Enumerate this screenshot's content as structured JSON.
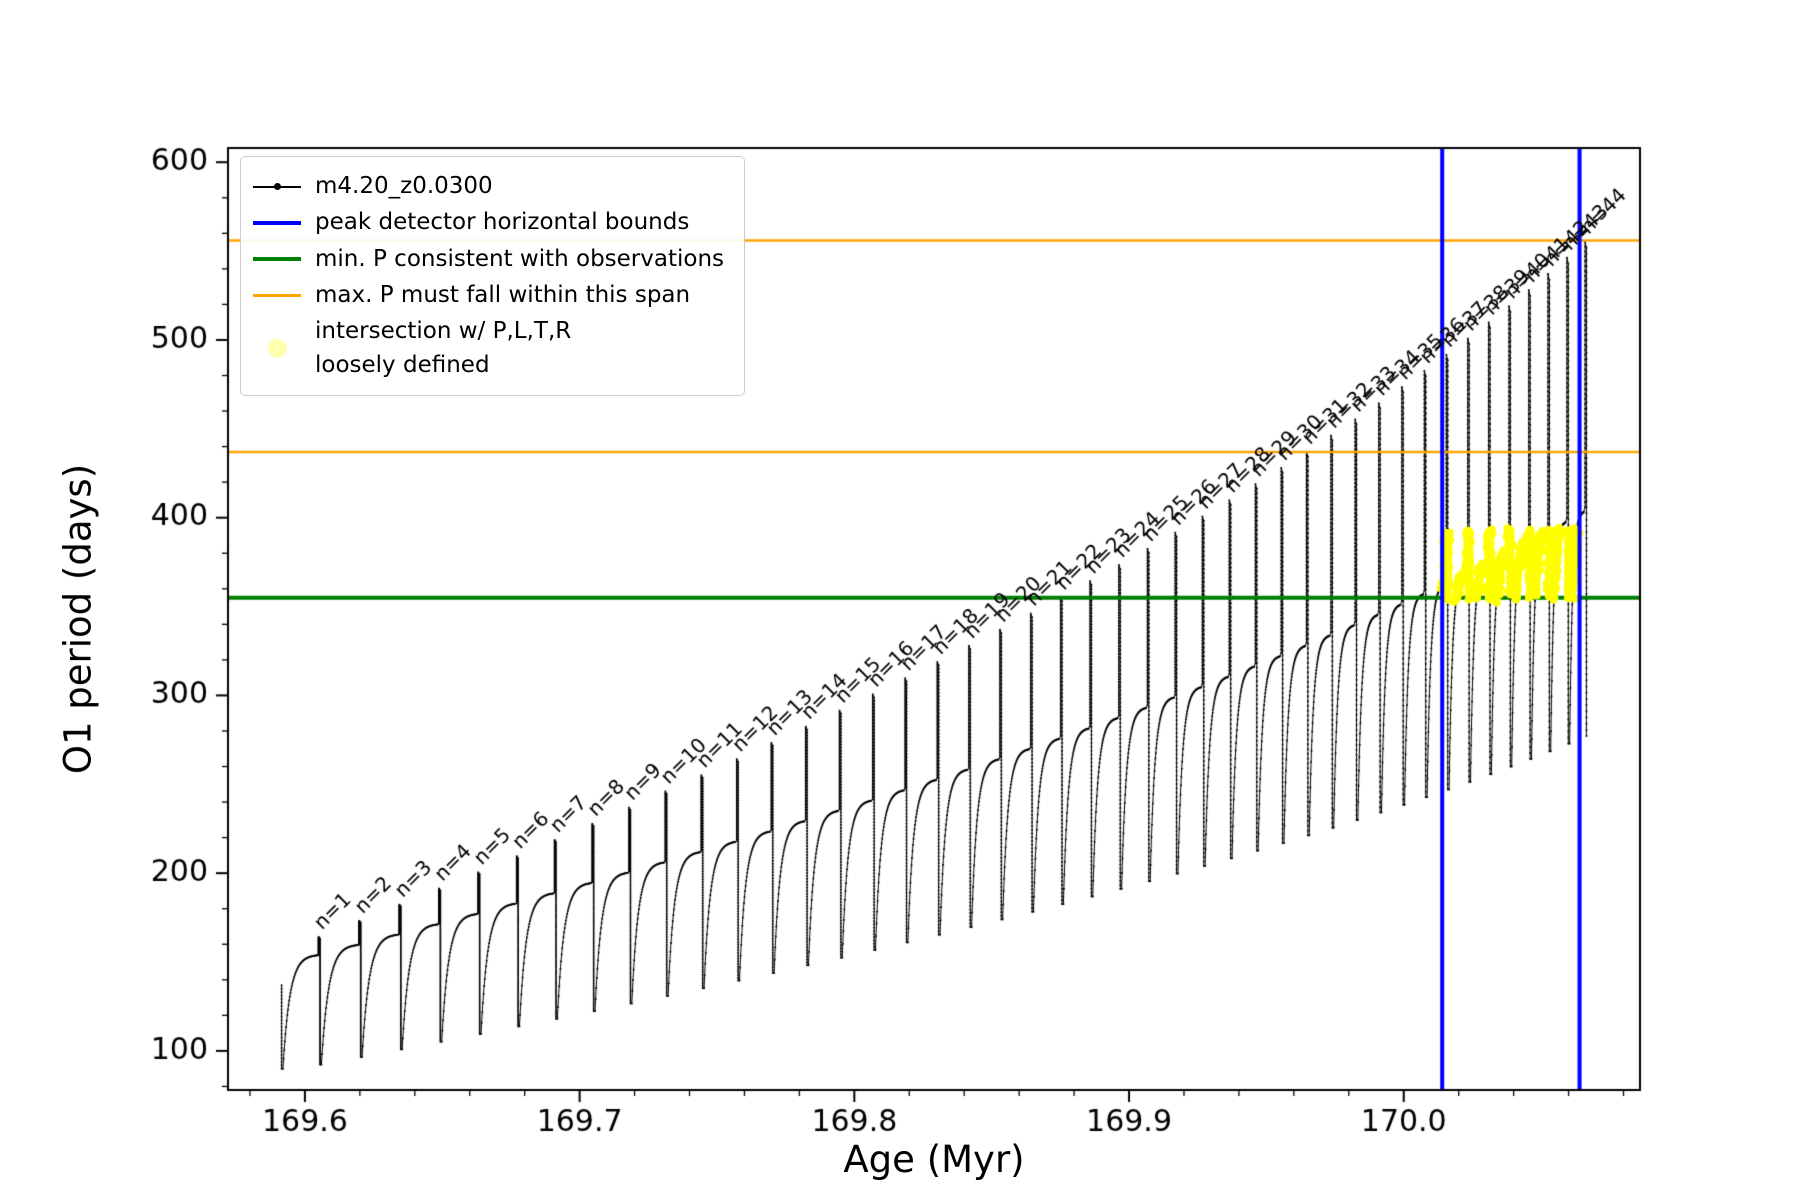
{
  "legend": {
    "entries": [
      {
        "label": "m4.20_z0.0300",
        "type": "line-dot",
        "color": "#000000"
      },
      {
        "label": "peak detector horizontal bounds",
        "type": "line",
        "color": "#0000ff"
      },
      {
        "label": "min. P consistent with observations",
        "type": "line",
        "color": "#008000"
      },
      {
        "label": "max. P must fall within this span",
        "type": "line",
        "color": "#ffa500"
      },
      {
        "label": "intersection w/ P,L,T,R\nloosely defined",
        "type": "dot",
        "color": "#ffffb0"
      }
    ]
  },
  "chart_data": {
    "type": "line",
    "series_name": "m4.20_z0.0300",
    "xlabel": "Age (Myr)",
    "ylabel": "O1 period (days)",
    "xlim": [
      169.572,
      170.086
    ],
    "ylim": [
      78,
      608
    ],
    "x_ticks": [
      169.6,
      169.7,
      169.8,
      169.9,
      170.0
    ],
    "x_tick_labels": [
      "169.6",
      "169.7",
      "169.8",
      "169.9",
      "170.0"
    ],
    "y_ticks": [
      100,
      200,
      300,
      400,
      500,
      600
    ],
    "y_tick_labels": [
      "100",
      "200",
      "300",
      "400",
      "500",
      "600"
    ],
    "x_minor_step": 0.02,
    "y_minor_step": 20,
    "grid": false,
    "legend_position": "upper left",
    "line_color": "#000000",
    "hlines": [
      {
        "y": 556,
        "color": "#ffa500",
        "lw": 2.5,
        "label": "max. P must fall within this span"
      },
      {
        "y": 437,
        "color": "#ffa500",
        "lw": 2.5,
        "label": "max. P must fall within this span"
      },
      {
        "y": 355,
        "color": "#008000",
        "lw": 4,
        "label": "min. P consistent with observations"
      }
    ],
    "vlines": [
      {
        "x": 170.014,
        "color": "#0000ff",
        "lw": 4,
        "label": "peak detector horizontal bounds"
      },
      {
        "x": 170.064,
        "color": "#0000ff",
        "lw": 4,
        "label": "peak detector horizontal bounds"
      }
    ],
    "highlight": {
      "label": "intersection w/ P,L,T,R loosely defined",
      "color": "#ffff00",
      "x_range": [
        170.014,
        170.064
      ],
      "y_range": [
        354,
        393
      ]
    },
    "start": {
      "age": 169.5915,
      "period": 137,
      "initial_trough": 90
    },
    "cycles": [
      {
        "n": 1,
        "label": "n=1",
        "age": 169.605,
        "hump_top": 153.8,
        "spike_tip": 164.1,
        "trough_after": 92.3
      },
      {
        "n": 2,
        "label": "n=2",
        "age": 169.6198,
        "hump_top": 159.6,
        "spike_tip": 173.2,
        "trough_after": 96.6
      },
      {
        "n": 3,
        "label": "n=3",
        "age": 169.6344,
        "hump_top": 165.4,
        "spike_tip": 182.3,
        "trough_after": 100.9
      },
      {
        "n": 4,
        "label": "n=4",
        "age": 169.6488,
        "hump_top": 171.2,
        "spike_tip": 191.4,
        "trough_after": 105.2
      },
      {
        "n": 5,
        "label": "n=5",
        "age": 169.6631,
        "hump_top": 177.0,
        "spike_tip": 200.5,
        "trough_after": 109.5
      },
      {
        "n": 6,
        "label": "n=6",
        "age": 169.6771,
        "hump_top": 182.8,
        "spike_tip": 209.6,
        "trough_after": 113.8
      },
      {
        "n": 7,
        "label": "n=7",
        "age": 169.6909,
        "hump_top": 188.6,
        "spike_tip": 218.7,
        "trough_after": 118.1
      },
      {
        "n": 8,
        "label": "n=8",
        "age": 169.7046,
        "hump_top": 194.4,
        "spike_tip": 227.8,
        "trough_after": 122.4
      },
      {
        "n": 9,
        "label": "n=9",
        "age": 169.718,
        "hump_top": 200.2,
        "spike_tip": 236.9,
        "trough_after": 126.7
      },
      {
        "n": 10,
        "label": "n=10",
        "age": 169.7312,
        "hump_top": 206.0,
        "spike_tip": 246.0,
        "trough_after": 131.0
      },
      {
        "n": 11,
        "label": "n=11",
        "age": 169.7443,
        "hump_top": 211.8,
        "spike_tip": 255.1,
        "trough_after": 135.3
      },
      {
        "n": 12,
        "label": "n=12",
        "age": 169.7572,
        "hump_top": 217.6,
        "spike_tip": 264.2,
        "trough_after": 139.6
      },
      {
        "n": 13,
        "label": "n=13",
        "age": 169.7698,
        "hump_top": 223.4,
        "spike_tip": 273.3,
        "trough_after": 143.9
      },
      {
        "n": 14,
        "label": "n=14",
        "age": 169.7823,
        "hump_top": 229.2,
        "spike_tip": 282.4,
        "trough_after": 148.2
      },
      {
        "n": 15,
        "label": "n=15",
        "age": 169.7946,
        "hump_top": 235.0,
        "spike_tip": 291.5,
        "trough_after": 152.5
      },
      {
        "n": 16,
        "label": "n=16",
        "age": 169.8067,
        "hump_top": 240.8,
        "spike_tip": 300.6,
        "trough_after": 156.8
      },
      {
        "n": 17,
        "label": "n=17",
        "age": 169.8185,
        "hump_top": 246.6,
        "spike_tip": 309.7,
        "trough_after": 161.1
      },
      {
        "n": 18,
        "label": "n=18",
        "age": 169.8302,
        "hump_top": 252.4,
        "spike_tip": 318.8,
        "trough_after": 165.4
      },
      {
        "n": 19,
        "label": "n=19",
        "age": 169.8417,
        "hump_top": 258.2,
        "spike_tip": 327.9,
        "trough_after": 169.7
      },
      {
        "n": 20,
        "label": "n=20",
        "age": 169.853,
        "hump_top": 264.0,
        "spike_tip": 337.0,
        "trough_after": 174.0
      },
      {
        "n": 21,
        "label": "n=21",
        "age": 169.8642,
        "hump_top": 269.8,
        "spike_tip": 346.1,
        "trough_after": 178.3
      },
      {
        "n": 22,
        "label": "n=22",
        "age": 169.8751,
        "hump_top": 275.6,
        "spike_tip": 355.2,
        "trough_after": 182.6
      },
      {
        "n": 23,
        "label": "n=23",
        "age": 169.8858,
        "hump_top": 281.4,
        "spike_tip": 364.3,
        "trough_after": 186.9
      },
      {
        "n": 24,
        "label": "n=24",
        "age": 169.8963,
        "hump_top": 287.2,
        "spike_tip": 373.4,
        "trough_after": 191.2
      },
      {
        "n": 25,
        "label": "n=25",
        "age": 169.9067,
        "hump_top": 293.0,
        "spike_tip": 382.5,
        "trough_after": 195.5
      },
      {
        "n": 26,
        "label": "n=26",
        "age": 169.9168,
        "hump_top": 298.8,
        "spike_tip": 391.6,
        "trough_after": 199.8
      },
      {
        "n": 27,
        "label": "n=27",
        "age": 169.9267,
        "hump_top": 304.6,
        "spike_tip": 400.7,
        "trough_after": 204.1
      },
      {
        "n": 28,
        "label": "n=28",
        "age": 169.9365,
        "hump_top": 310.4,
        "spike_tip": 409.8,
        "trough_after": 208.4
      },
      {
        "n": 29,
        "label": "n=29",
        "age": 169.946,
        "hump_top": 316.2,
        "spike_tip": 418.9,
        "trough_after": 212.7
      },
      {
        "n": 30,
        "label": "n=30",
        "age": 169.9554,
        "hump_top": 322.0,
        "spike_tip": 428.0,
        "trough_after": 217.0
      },
      {
        "n": 31,
        "label": "n=31",
        "age": 169.9646,
        "hump_top": 327.8,
        "spike_tip": 437.1,
        "trough_after": 221.3
      },
      {
        "n": 32,
        "label": "n=32",
        "age": 169.9735,
        "hump_top": 333.6,
        "spike_tip": 446.2,
        "trough_after": 225.6
      },
      {
        "n": 33,
        "label": "n=33",
        "age": 169.9823,
        "hump_top": 339.4,
        "spike_tip": 455.3,
        "trough_after": 229.9
      },
      {
        "n": 34,
        "label": "n=34",
        "age": 169.9909,
        "hump_top": 345.2,
        "spike_tip": 464.4,
        "trough_after": 234.2
      },
      {
        "n": 35,
        "label": "n=35",
        "age": 169.9993,
        "hump_top": 351.0,
        "spike_tip": 473.5,
        "trough_after": 238.5
      },
      {
        "n": 36,
        "label": "n=36",
        "age": 170.0075,
        "hump_top": 356.8,
        "spike_tip": 482.6,
        "trough_after": 242.8
      },
      {
        "n": 37,
        "label": "n=37",
        "age": 170.0155,
        "hump_top": 362.6,
        "spike_tip": 491.7,
        "trough_after": 247.1
      },
      {
        "n": 38,
        "label": "n=38",
        "age": 170.0233,
        "hump_top": 368.4,
        "spike_tip": 500.8,
        "trough_after": 251.4
      },
      {
        "n": 39,
        "label": "n=39",
        "age": 170.0309,
        "hump_top": 374.2,
        "spike_tip": 509.9,
        "trough_after": 255.7
      },
      {
        "n": 40,
        "label": "n=40",
        "age": 170.0383,
        "hump_top": 380.0,
        "spike_tip": 519.0,
        "trough_after": 260.0
      },
      {
        "n": 41,
        "label": "n=41",
        "age": 170.0455,
        "hump_top": 385.8,
        "spike_tip": 528.1,
        "trough_after": 264.3
      },
      {
        "n": 42,
        "label": "n=42",
        "age": 170.0525,
        "hump_top": 391.6,
        "spike_tip": 537.2,
        "trough_after": 268.6
      },
      {
        "n": 43,
        "label": "n=43",
        "age": 170.0594,
        "hump_top": 397.4,
        "spike_tip": 546.3,
        "trough_after": 272.9
      },
      {
        "n": 44,
        "label": "n=44",
        "age": 170.066,
        "hump_top": 403.2,
        "spike_tip": 555.4,
        "trough_after": 277.2
      }
    ]
  }
}
